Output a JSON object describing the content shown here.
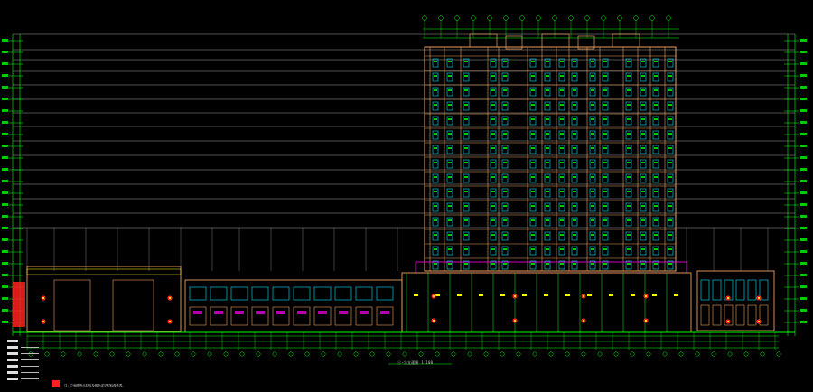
{
  "drawing": {
    "caption": "①-⑪立面图 1:100",
    "bottom_note": "注：立面图所示材料及颜色详见材料做法表。",
    "colors": {
      "background": "#000000",
      "grid_lines": "#d8d8d8",
      "dimension_green": "#00ff00",
      "wall_orange": "#e8a060",
      "window_cyan": "#00e5ff",
      "accent_red": "#ff2020",
      "accent_yellow": "#ffff00",
      "accent_magenta": "#ff00ff",
      "accent_blue": "#3070ff"
    }
  }
}
